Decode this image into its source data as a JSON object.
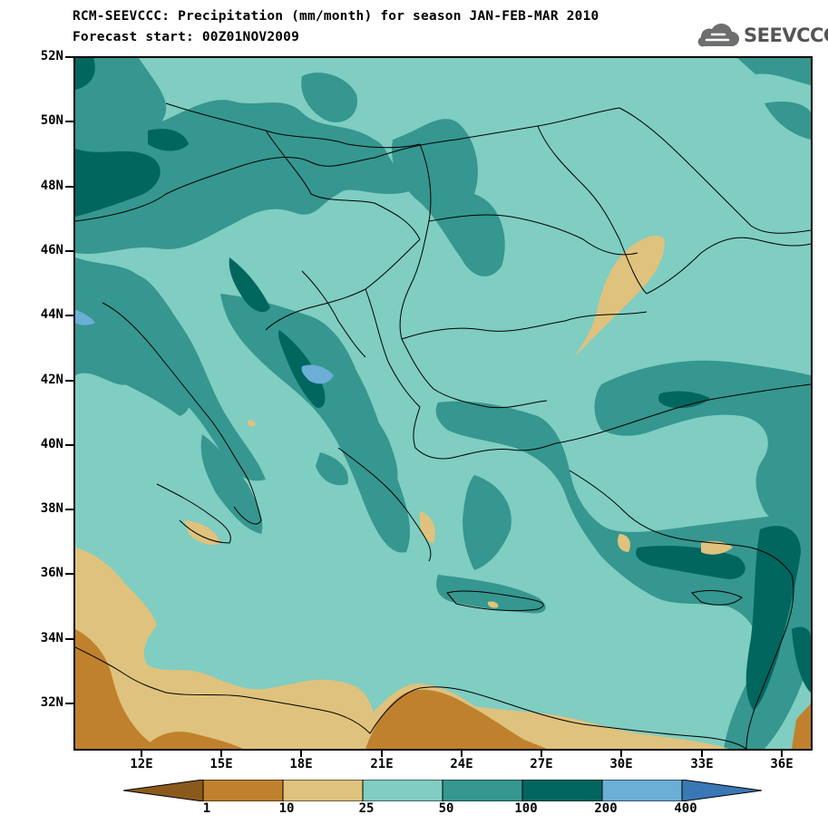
{
  "title": {
    "line1": "RCM-SEEVCCC: Precipitation (mm/month) for season JAN-FEB-MAR 2010",
    "line2": "Forecast start: 00Z01NOV2009"
  },
  "logo": {
    "text": "SEEVCCC",
    "icon": "cloud-icon"
  },
  "map": {
    "projection": "lat-lon",
    "lon_range_deg": [
      9.2,
      37.2
    ],
    "lat_range_deg": [
      30.5,
      52.0
    ],
    "grid": false,
    "lat_labels": [
      "52N",
      "50N",
      "48N",
      "46N",
      "44N",
      "42N",
      "40N",
      "38N",
      "36N",
      "34N",
      "32N"
    ],
    "lon_labels": [
      "12E",
      "15E",
      "18E",
      "21E",
      "24E",
      "27E",
      "30E",
      "33E",
      "36E"
    ]
  },
  "colorbar": {
    "boundaries": [
      "1",
      "10",
      "25",
      "50",
      "100",
      "200",
      "400"
    ],
    "colors": [
      "#8a5a1c",
      "#bf812d",
      "#dfc27d",
      "#80cdc1",
      "#35978f",
      "#01665e",
      "#6baed6",
      "#3a78b5"
    ],
    "extend": "both"
  }
}
